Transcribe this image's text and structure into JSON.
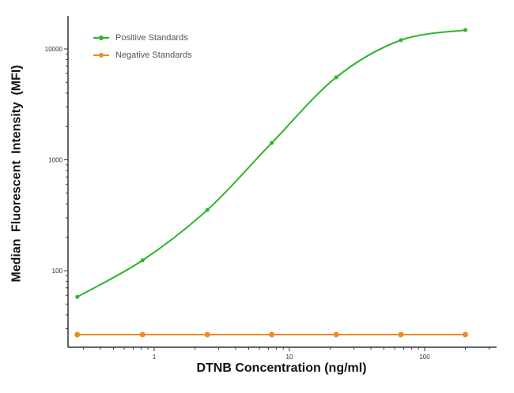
{
  "chart_data": {
    "type": "line",
    "title": "",
    "xlabel": "DTNB Concentration (ng/ml)",
    "ylabel": "Median  Fluorescent Intensity  (MFI)",
    "xscale": "log",
    "yscale": "log",
    "xlim": [
      0.25,
      250
    ],
    "ylim": [
      20,
      20000
    ],
    "x_ticks": [
      1,
      10,
      100
    ],
    "x_tick_labels": [
      "1",
      "10",
      "100"
    ],
    "y_ticks": [
      100,
      1000,
      10000
    ],
    "y_tick_labels": [
      "100",
      "1000",
      "10000"
    ],
    "grid": false,
    "legend_position": "upper left",
    "x": [
      0.27,
      0.82,
      2.47,
      7.4,
      22.2,
      66.7,
      200
    ],
    "series": [
      {
        "name": "Positive Standards",
        "color": "#2db52d",
        "values": [
          58,
          124,
          353,
          1420,
          5550,
          12000,
          14800
        ],
        "fit": "4PL sigmoid curve"
      },
      {
        "name": "Negative Standards",
        "color": "#f08a24",
        "values": [
          26.5,
          26.5,
          26.5,
          26.5,
          26.5,
          26.5,
          26.5
        ],
        "fit": "flat line"
      }
    ]
  },
  "labels": {
    "ylabel": "Median  Fluorescent Intensity  (MFI)",
    "xlabel": "DTNB Concentration (ng/ml)",
    "legend": [
      "Positive Standards",
      "Negative Standards"
    ]
  }
}
